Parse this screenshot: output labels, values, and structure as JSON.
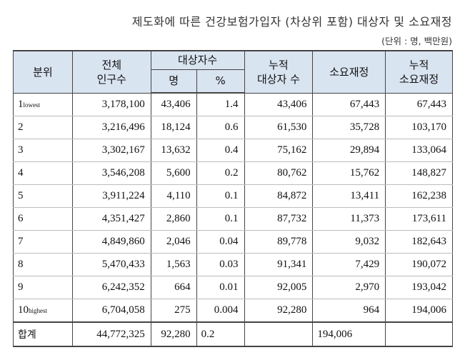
{
  "title": "제도화에 따른 건강보험가입자 (차상위 포함) 대상자 및 소요재정",
  "unit": "(단위 : 명, 백만원)",
  "headers": {
    "bunwi": "분위",
    "total_pop": [
      "전체",
      "인구수"
    ],
    "target": "대상자수",
    "target_count": "명",
    "target_pct": "%",
    "cum_target": [
      "누적",
      "대상자 수"
    ],
    "cost": "소요재정",
    "cum_cost": [
      "누적",
      "소요재정"
    ]
  },
  "rows": [
    {
      "bunwi_num": "1",
      "bunwi_sub": "lowest",
      "pop": "3,178,100",
      "count": "43,406",
      "pct": "1.4",
      "cum_target": "43,406",
      "cost": "67,443",
      "cum_cost": "67,443"
    },
    {
      "bunwi_num": "2",
      "bunwi_sub": "",
      "pop": "3,216,496",
      "count": "18,124",
      "pct": "0.6",
      "cum_target": "61,530",
      "cost": "35,728",
      "cum_cost": "103,170"
    },
    {
      "bunwi_num": "3",
      "bunwi_sub": "",
      "pop": "3,302,167",
      "count": "13,632",
      "pct": "0.4",
      "cum_target": "75,162",
      "cost": "29,894",
      "cum_cost": "133,064"
    },
    {
      "bunwi_num": "4",
      "bunwi_sub": "",
      "pop": "3,546,208",
      "count": "5,600",
      "pct": "0.2",
      "cum_target": "80,762",
      "cost": "15,762",
      "cum_cost": "148,827"
    },
    {
      "bunwi_num": "5",
      "bunwi_sub": "",
      "pop": "3,911,224",
      "count": "4,110",
      "pct": "0.1",
      "cum_target": "84,872",
      "cost": "13,411",
      "cum_cost": "162,238"
    },
    {
      "bunwi_num": "6",
      "bunwi_sub": "",
      "pop": "4,351,427",
      "count": "2,860",
      "pct": "0.1",
      "cum_target": "87,732",
      "cost": "11,373",
      "cum_cost": "173,611"
    },
    {
      "bunwi_num": "7",
      "bunwi_sub": "",
      "pop": "4,849,860",
      "count": "2,046",
      "pct": "0.04",
      "cum_target": "89,778",
      "cost": "9,032",
      "cum_cost": "182,643"
    },
    {
      "bunwi_num": "8",
      "bunwi_sub": "",
      "pop": "5,470,433",
      "count": "1,563",
      "pct": "0.03",
      "cum_target": "91,341",
      "cost": "7,429",
      "cum_cost": "190,072"
    },
    {
      "bunwi_num": "9",
      "bunwi_sub": "",
      "pop": "6,242,352",
      "count": "664",
      "pct": "0.01",
      "cum_target": "92,005",
      "cost": "2,970",
      "cum_cost": "193,042"
    },
    {
      "bunwi_num": "10",
      "bunwi_sub": "highest",
      "pop": "6,704,058",
      "count": "275",
      "pct": "0.004",
      "cum_target": "92,280",
      "cost": "964",
      "cum_cost": "194,006"
    }
  ],
  "total": {
    "label": "합계",
    "pop": "44,772,325",
    "count": "92,280",
    "pct": "0.2",
    "cum_target": "",
    "cost": "194,006",
    "cum_cost": ""
  }
}
